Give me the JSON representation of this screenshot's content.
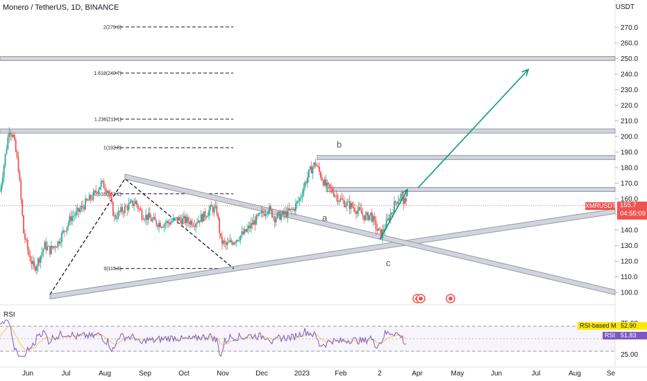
{
  "header": {
    "title": "Monero / TetherUS, 1D, BINANCE",
    "currency": "USDT"
  },
  "colors": {
    "up": "#26a69a",
    "down": "#ef5350",
    "arrow": "#089981",
    "rsi": "#7e57c2",
    "rsi_ma": "#f7c948"
  },
  "tags": {
    "symbol": "XMRUSDT",
    "price": "155.7",
    "countdown": "04:55:09",
    "rsi_title": "RSI",
    "rsi_ma_label": "RSI-based MA",
    "rsi_ma_value": "52.90",
    "rsi_label": "RSI",
    "rsi_value": "51.83"
  },
  "waves": {
    "a": "a",
    "b": "b",
    "c": "c"
  },
  "chart_data": {
    "type": "candlestick",
    "symbol": "XMRUSDT",
    "timeframe": "1D",
    "y_ticks": [
      "270.0",
      "260.0",
      "250.0",
      "240.0",
      "230.0",
      "220.0",
      "210.0",
      "200.0",
      "190.0",
      "180.0",
      "170.0",
      "160.0",
      "150.0",
      "140.0",
      "130.0",
      "120.0",
      "110.0",
      "100.0"
    ],
    "ylim": [
      96,
      282
    ],
    "x_ticks": [
      "Jun",
      "Jul",
      "Aug",
      "Sep",
      "Oct",
      "Nov",
      "Dec",
      "2023",
      "Feb",
      "2",
      "Apr",
      "May",
      "Jun",
      "Jul",
      "Aug",
      "Se"
    ],
    "x_range": [
      "2022-05-25",
      "2023-09-05"
    ],
    "fib_levels": [
      {
        "label": "2(270.3)",
        "value": 270.3
      },
      {
        "label": "1.618(240.7)",
        "value": 240.7
      },
      {
        "label": "1.236(211.1)",
        "value": 211.1
      },
      {
        "label": "1(192.8)",
        "value": 192.8
      },
      {
        "label": "0.618(163.2)",
        "value": 163.2
      },
      {
        "label": "0(115.3)",
        "value": 115.3
      }
    ],
    "horizontal_zones": [
      250.0,
      203.5,
      186.5,
      166.0
    ],
    "close_path": [
      [
        "2022-05-25",
        165
      ],
      [
        "2022-05-28",
        182
      ],
      [
        "2022-06-01",
        205
      ],
      [
        "2022-06-04",
        200
      ],
      [
        "2022-06-08",
        180
      ],
      [
        "2022-06-12",
        138
      ],
      [
        "2022-06-16",
        124
      ],
      [
        "2022-06-20",
        115
      ],
      [
        "2022-06-24",
        122
      ],
      [
        "2022-06-28",
        130
      ],
      [
        "2022-07-02",
        127
      ],
      [
        "2022-07-08",
        132
      ],
      [
        "2022-07-13",
        140
      ],
      [
        "2022-07-18",
        148
      ],
      [
        "2022-07-24",
        152
      ],
      [
        "2022-07-30",
        158
      ],
      [
        "2022-08-04",
        162
      ],
      [
        "2022-08-10",
        170
      ],
      [
        "2022-08-15",
        166
      ],
      [
        "2022-08-20",
        148
      ],
      [
        "2022-08-25",
        152
      ],
      [
        "2022-08-30",
        155
      ],
      [
        "2022-09-05",
        158
      ],
      [
        "2022-09-10",
        150
      ],
      [
        "2022-09-15",
        148
      ],
      [
        "2022-09-20",
        145
      ],
      [
        "2022-09-25",
        144
      ],
      [
        "2022-10-01",
        145
      ],
      [
        "2022-10-07",
        147
      ],
      [
        "2022-10-13",
        146
      ],
      [
        "2022-10-20",
        145
      ],
      [
        "2022-10-27",
        149
      ],
      [
        "2022-11-02",
        154
      ],
      [
        "2022-11-06",
        152
      ],
      [
        "2022-11-09",
        133
      ],
      [
        "2022-11-13",
        130
      ],
      [
        "2022-11-20",
        134
      ],
      [
        "2022-11-27",
        138
      ],
      [
        "2022-12-04",
        145
      ],
      [
        "2022-12-10",
        150
      ],
      [
        "2022-12-15",
        154
      ],
      [
        "2022-12-20",
        148
      ],
      [
        "2022-12-27",
        150
      ],
      [
        "2023-01-03",
        153
      ],
      [
        "2023-01-08",
        160
      ],
      [
        "2023-01-12",
        170
      ],
      [
        "2023-01-16",
        178
      ],
      [
        "2023-01-20",
        183
      ],
      [
        "2023-01-24",
        175
      ],
      [
        "2023-01-28",
        168
      ],
      [
        "2023-02-02",
        165
      ],
      [
        "2023-02-07",
        160
      ],
      [
        "2023-02-12",
        157
      ],
      [
        "2023-02-17",
        155
      ],
      [
        "2023-02-22",
        152
      ],
      [
        "2023-02-27",
        148
      ],
      [
        "2023-03-03",
        150
      ],
      [
        "2023-03-08",
        140
      ],
      [
        "2023-03-11",
        137
      ],
      [
        "2023-03-14",
        142
      ],
      [
        "2023-03-18",
        150
      ],
      [
        "2023-03-22",
        158
      ],
      [
        "2023-03-26",
        162
      ],
      [
        "2023-03-30",
        156
      ]
    ],
    "arrows": [
      {
        "from": [
          "2023-03-10",
          134
        ],
        "to": [
          "2023-03-31",
          166
        ]
      },
      {
        "from": [
          "2023-04-08",
          167
        ],
        "to": [
          "2023-07-01",
          243
        ]
      }
    ],
    "rsi": {
      "ticks": [
        "75.00",
        "25.00"
      ],
      "overbought": 70,
      "oversold": 30,
      "latest": 51.83,
      "ma_latest": 52.9
    }
  }
}
